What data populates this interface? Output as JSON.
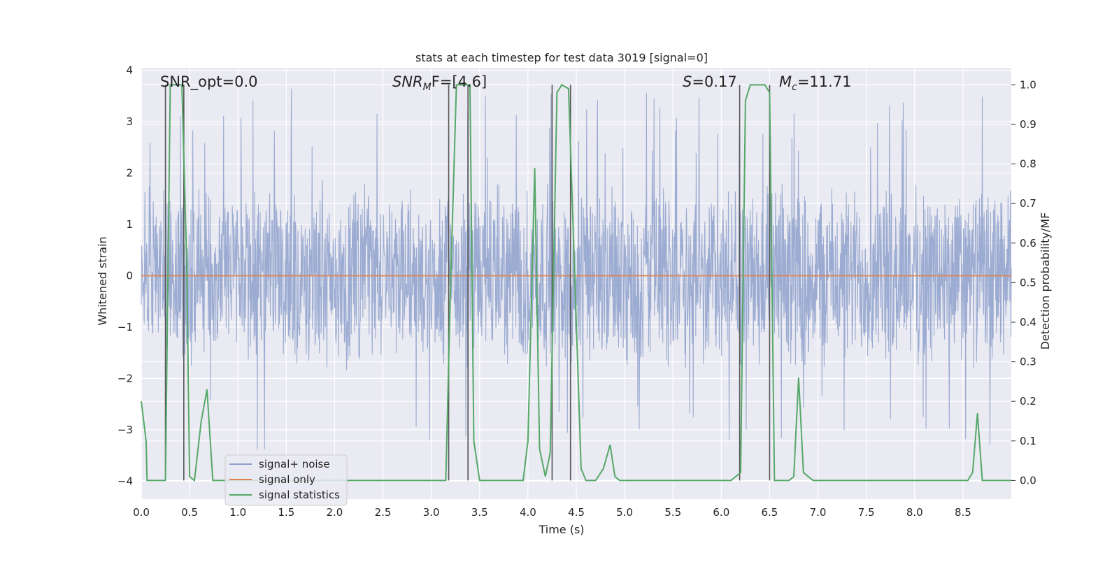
{
  "chart_data": {
    "type": "line",
    "title": "stats at each timestep for test data 3019 [signal=0]",
    "xlabel": "Time (s)",
    "ylabel_left": "Whitened strain",
    "ylabel_right": "Detection probability/MF",
    "xlim": [
      0,
      9
    ],
    "ylim_left": [
      -4.35,
      4.05
    ],
    "ylim_right": [
      -0.047,
      1.043
    ],
    "x_ticks": [
      0.0,
      0.5,
      1.0,
      1.5,
      2.0,
      2.5,
      3.0,
      3.5,
      4.0,
      4.5,
      5.0,
      5.5,
      6.0,
      6.5,
      7.0,
      7.5,
      8.0,
      8.5
    ],
    "x_tick_labels": [
      "0.0",
      "0.5",
      "1.0",
      "1.5",
      "2.0",
      "2.5",
      "3.0",
      "3.5",
      "4.0",
      "4.5",
      "5.0",
      "5.5",
      "6.0",
      "6.5",
      "7.0",
      "7.5",
      "8.0",
      "8.5"
    ],
    "y_left_ticks": [
      4,
      3,
      2,
      1,
      0,
      -1,
      -2,
      -3,
      -4
    ],
    "y_left_tick_labels": [
      "4",
      "3",
      "2",
      "1",
      "0",
      "−1",
      "−2",
      "−3",
      "−4"
    ],
    "y_right_ticks": [
      1.0,
      0.9,
      0.8,
      0.7,
      0.6,
      0.5,
      0.4,
      0.3,
      0.2,
      0.1,
      0.0
    ],
    "y_right_tick_labels": [
      "1.0",
      "0.9",
      "0.8",
      "0.7",
      "0.6",
      "0.5",
      "0.4",
      "0.3",
      "0.2",
      "0.1",
      "0.0"
    ],
    "grid": true,
    "legend_position": "lower-left",
    "annotations": {
      "snr_opt": "SNR_opt=0.0",
      "snr_mf_base": "SNR",
      "snr_mf_sub": "M",
      "snr_mf_rest": "F=[4.6]",
      "s_symbol": "S",
      "s_value": "=0.17",
      "mc_symbol": "M",
      "mc_sub": "c",
      "mc_value": "=11.71"
    },
    "series": [
      {
        "name": "signal+ noise",
        "color": "#8da0cb",
        "style": "dense noise, roughly within [-3.8, 3.6]",
        "approx_envelope": {
          "p_min": -1.9,
          "p_max": 1.9,
          "extreme_min": -3.85,
          "extreme_max": 3.65
        }
      },
      {
        "name": "signal only",
        "color": "#dd8452",
        "values": [
          [
            0,
            0
          ],
          [
            9,
            0
          ]
        ]
      },
      {
        "name": "signal statistics",
        "color": "#55a868",
        "axis": "right",
        "points": [
          [
            0.0,
            0.2
          ],
          [
            0.05,
            0.1
          ],
          [
            0.06,
            0.0
          ],
          [
            0.2,
            0.0
          ],
          [
            0.25,
            0.0
          ],
          [
            0.3,
            1.0
          ],
          [
            0.35,
            1.0
          ],
          [
            0.42,
            1.0
          ],
          [
            0.47,
            0.55
          ],
          [
            0.5,
            0.01
          ],
          [
            0.55,
            0.0
          ],
          [
            0.62,
            0.15
          ],
          [
            0.68,
            0.23
          ],
          [
            0.74,
            0.0
          ],
          [
            0.9,
            0.0
          ],
          [
            3.15,
            0.0
          ],
          [
            3.2,
            0.5
          ],
          [
            3.26,
            1.0
          ],
          [
            3.3,
            1.0
          ],
          [
            3.4,
            1.0
          ],
          [
            3.44,
            0.1
          ],
          [
            3.5,
            0.0
          ],
          [
            3.95,
            0.0
          ],
          [
            4.0,
            0.1
          ],
          [
            4.07,
            0.79
          ],
          [
            4.12,
            0.08
          ],
          [
            4.18,
            0.01
          ],
          [
            4.23,
            0.07
          ],
          [
            4.3,
            0.98
          ],
          [
            4.35,
            1.0
          ],
          [
            4.42,
            0.99
          ],
          [
            4.55,
            0.03
          ],
          [
            4.6,
            0.0
          ],
          [
            4.7,
            0.0
          ],
          [
            4.78,
            0.03
          ],
          [
            4.85,
            0.09
          ],
          [
            4.9,
            0.01
          ],
          [
            4.95,
            0.0
          ],
          [
            6.1,
            0.0
          ],
          [
            6.2,
            0.02
          ],
          [
            6.25,
            0.96
          ],
          [
            6.3,
            1.0
          ],
          [
            6.45,
            1.0
          ],
          [
            6.5,
            0.98
          ],
          [
            6.55,
            0.0
          ],
          [
            6.7,
            0.0
          ],
          [
            6.75,
            0.01
          ],
          [
            6.8,
            0.26
          ],
          [
            6.85,
            0.02
          ],
          [
            6.95,
            0.0
          ],
          [
            8.55,
            0.0
          ],
          [
            8.6,
            0.02
          ],
          [
            8.65,
            0.17
          ],
          [
            8.7,
            0.0
          ],
          [
            9.0,
            0.0
          ]
        ]
      }
    ],
    "vertical_markers": [
      0.25,
      0.44,
      3.18,
      3.38,
      4.25,
      4.44,
      6.19,
      6.5
    ],
    "colors": {
      "plot_background": "#eaeaf2",
      "grid": "#ffffff",
      "marker_line": "#555555"
    }
  }
}
